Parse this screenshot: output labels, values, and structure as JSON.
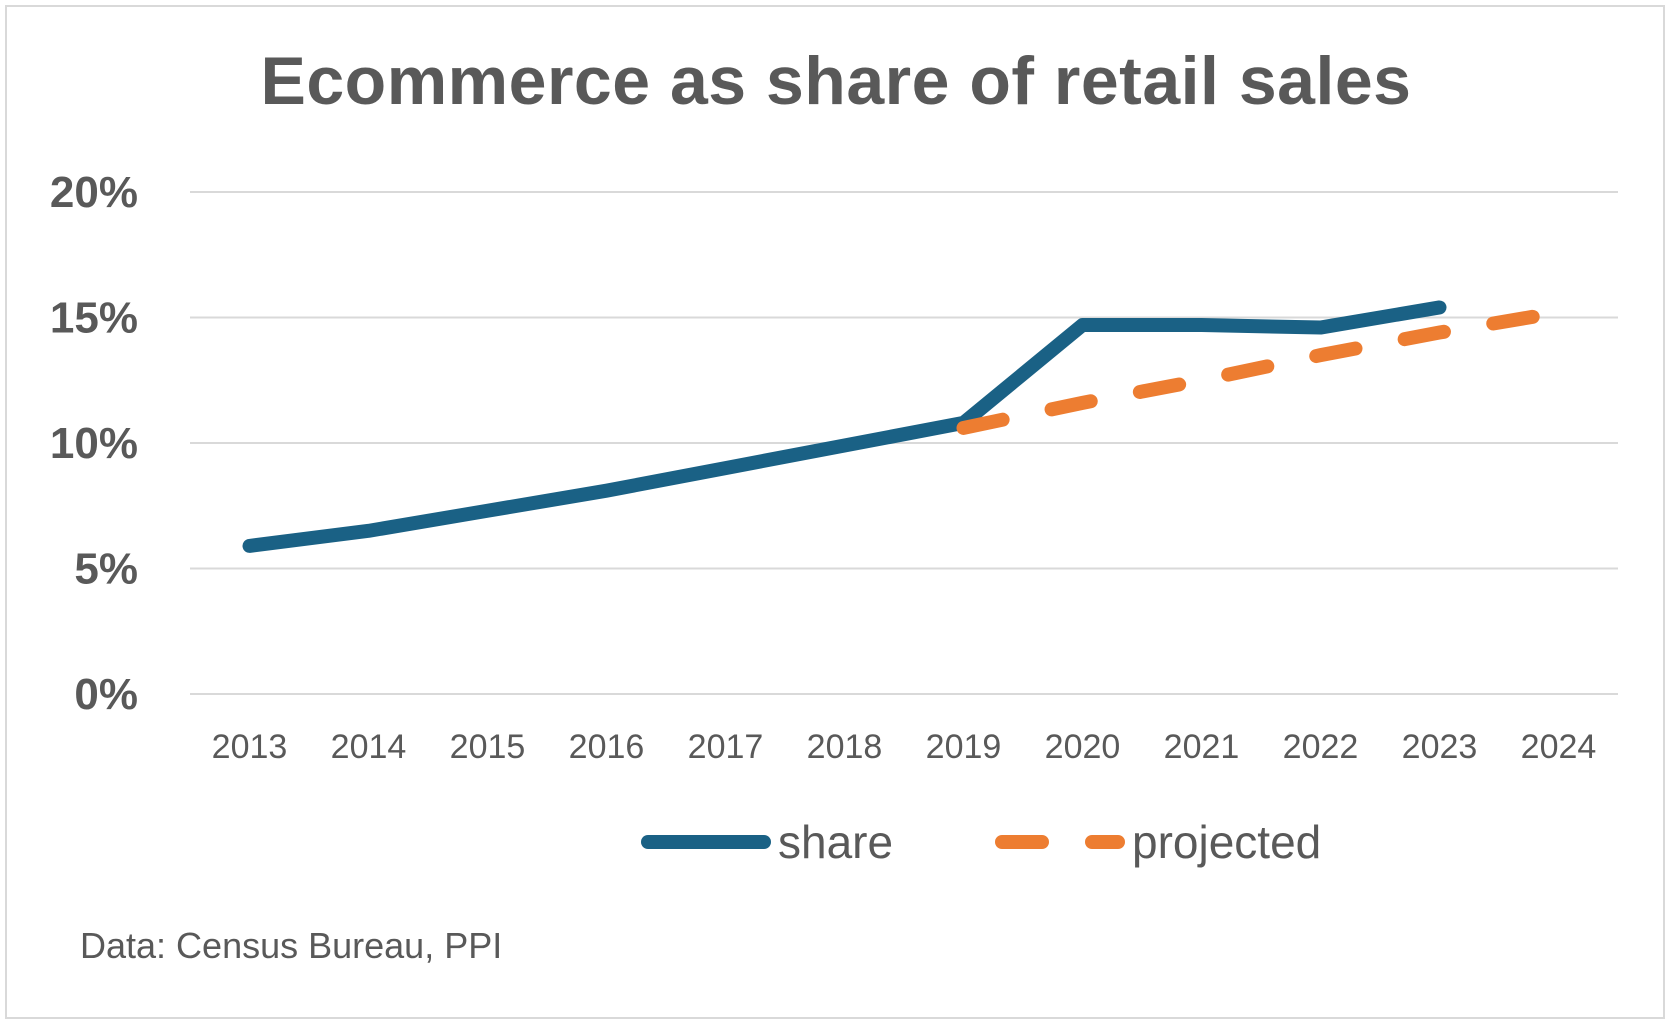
{
  "colors": {
    "share": "#1a6185",
    "projected": "#ed7d31",
    "grid": "#d9d9d9",
    "text": "#595959"
  },
  "chart_data": {
    "type": "line",
    "title": "Ecommerce as share of retail sales",
    "xlabel": "",
    "ylabel": "",
    "categories": [
      "2013",
      "2014",
      "2015",
      "2016",
      "2017",
      "2018",
      "2019",
      "2020",
      "2021",
      "2022",
      "2023",
      "2024"
    ],
    "yticks": [
      "0%",
      "5%",
      "10%",
      "15%",
      "20%"
    ],
    "ylim": [
      0,
      20
    ],
    "grid": true,
    "legend_position": "bottom",
    "series": [
      {
        "name": "share",
        "style": "solid",
        "values": [
          5.9,
          6.5,
          7.3,
          8.1,
          9.0,
          9.9,
          10.8,
          14.7,
          14.7,
          14.6,
          15.4,
          null
        ]
      },
      {
        "name": "projected",
        "style": "dashed",
        "values": [
          null,
          null,
          null,
          null,
          null,
          null,
          10.6,
          11.6,
          12.5,
          13.5,
          14.4,
          15.2
        ]
      }
    ]
  },
  "source": "Data: Census Bureau, PPI"
}
